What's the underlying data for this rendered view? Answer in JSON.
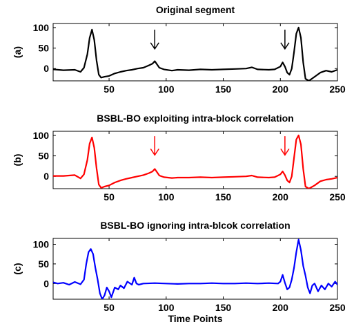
{
  "chart_data": [
    {
      "type": "line",
      "panel_label": "(a)",
      "title": "Original segment",
      "xlabel": "",
      "xlim": [
        1,
        250
      ],
      "ylim": [
        -30,
        110
      ],
      "xticks": [
        50,
        100,
        150,
        200,
        250
      ],
      "yticks": [
        0,
        50,
        100
      ],
      "color": "#000000",
      "arrows": [
        {
          "x": 90,
          "y_top": 95,
          "y_tip": 48
        },
        {
          "x": 204,
          "y_top": 95,
          "y_tip": 48
        }
      ],
      "series": [
        {
          "x": [
            1,
            10,
            20,
            25,
            28,
            31,
            33,
            35,
            37,
            39,
            41,
            43,
            46,
            50,
            55,
            60,
            65,
            70,
            75,
            80,
            85,
            88,
            90,
            92,
            94,
            98,
            105,
            110,
            120,
            130,
            140,
            150,
            160,
            170,
            175,
            180,
            190,
            195,
            200,
            202,
            204,
            206,
            208,
            210,
            212,
            214,
            216,
            218,
            220,
            222,
            225,
            230,
            235,
            240,
            245,
            250
          ],
          "y": [
            -2,
            -4,
            -3,
            -8,
            2,
            35,
            75,
            95,
            70,
            20,
            -15,
            -22,
            -20,
            -18,
            -12,
            -8,
            -5,
            -3,
            0,
            2,
            8,
            12,
            18,
            10,
            2,
            -2,
            -5,
            -3,
            -4,
            -2,
            -3,
            -2,
            -1,
            0,
            3,
            -2,
            -3,
            -2,
            5,
            15,
            5,
            -10,
            -15,
            0,
            40,
            85,
            100,
            75,
            15,
            -25,
            -30,
            -20,
            -10,
            -5,
            -8,
            -3
          ]
        }
      ]
    },
    {
      "type": "line",
      "panel_label": "(b)",
      "title": "BSBL-BO exploiting intra-block correlation",
      "xlabel": "",
      "xlim": [
        1,
        250
      ],
      "ylim": [
        -30,
        110
      ],
      "xticks": [
        50,
        100,
        150,
        200,
        250
      ],
      "yticks": [
        0,
        50,
        100
      ],
      "color": "#ff0000",
      "arrows": [
        {
          "x": 90,
          "y_top": 98,
          "y_tip": 52
        },
        {
          "x": 204,
          "y_top": 98,
          "y_tip": 52
        }
      ],
      "series": [
        {
          "x": [
            1,
            10,
            20,
            25,
            28,
            31,
            33,
            35,
            37,
            39,
            41,
            43,
            46,
            50,
            55,
            60,
            65,
            70,
            75,
            80,
            85,
            88,
            90,
            92,
            94,
            98,
            105,
            110,
            120,
            130,
            140,
            150,
            160,
            170,
            175,
            180,
            190,
            195,
            200,
            202,
            204,
            206,
            208,
            210,
            212,
            214,
            216,
            218,
            220,
            222,
            225,
            230,
            235,
            240,
            245,
            250
          ],
          "y": [
            1,
            1,
            3,
            -5,
            5,
            40,
            80,
            95,
            70,
            20,
            -20,
            -28,
            -25,
            -22,
            -15,
            -10,
            -6,
            -3,
            0,
            3,
            8,
            12,
            18,
            10,
            2,
            -2,
            -4,
            -3,
            -3,
            -2,
            -3,
            -2,
            -1,
            0,
            2,
            -2,
            -3,
            -2,
            5,
            12,
            3,
            -10,
            -15,
            0,
            45,
            90,
            100,
            78,
            18,
            -25,
            -30,
            -22,
            -12,
            -8,
            -6,
            -3
          ]
        }
      ]
    },
    {
      "type": "line",
      "panel_label": "(c)",
      "title": "BSBL-BO ignoring intra-blcok correlation",
      "xlabel": "Time Points",
      "xlim": [
        1,
        250
      ],
      "ylim": [
        -40,
        115
      ],
      "xticks": [
        50,
        100,
        150,
        200,
        250
      ],
      "yticks": [
        0,
        50,
        100
      ],
      "color": "#0000ff",
      "arrows": [],
      "series": [
        {
          "x": [
            1,
            5,
            10,
            15,
            20,
            25,
            28,
            30,
            32,
            34,
            36,
            38,
            40,
            42,
            44,
            46,
            48,
            50,
            52,
            55,
            58,
            60,
            63,
            66,
            70,
            72,
            74,
            76,
            80,
            90,
            100,
            110,
            120,
            130,
            140,
            150,
            160,
            170,
            180,
            190,
            198,
            200,
            202,
            204,
            206,
            208,
            210,
            212,
            214,
            216,
            218,
            220,
            222,
            224,
            226,
            228,
            230,
            233,
            236,
            239,
            242,
            245,
            248,
            250
          ],
          "y": [
            3,
            0,
            2,
            -3,
            4,
            -2,
            10,
            50,
            80,
            88,
            75,
            40,
            10,
            -25,
            -40,
            -30,
            -10,
            -20,
            -35,
            -10,
            -15,
            -5,
            -12,
            5,
            -3,
            15,
            0,
            -3,
            0,
            1,
            0,
            -1,
            0,
            0,
            1,
            0,
            0,
            1,
            0,
            1,
            0,
            5,
            22,
            2,
            -15,
            -10,
            10,
            40,
            80,
            112,
            85,
            45,
            20,
            -10,
            -25,
            -5,
            0,
            -20,
            -5,
            -15,
            0,
            -8,
            5,
            -3
          ]
        }
      ]
    }
  ]
}
